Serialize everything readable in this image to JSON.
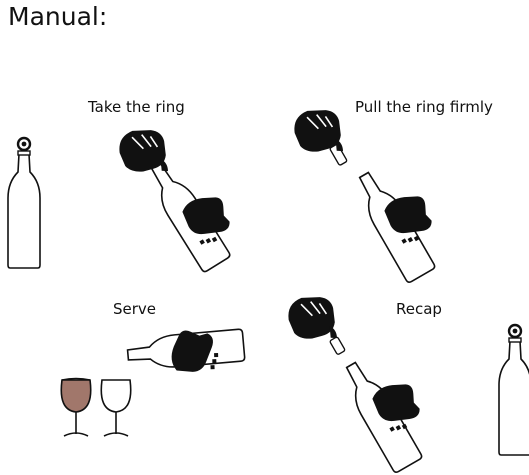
{
  "title": "Manual:",
  "steps": [
    {
      "label": "Take the ring"
    },
    {
      "label": "Pull the ring firmly"
    },
    {
      "label": "Serve"
    },
    {
      "label": "Recap"
    }
  ],
  "colors": {
    "ink": "#111111",
    "wine": "#a1776b",
    "background": "#ffffff"
  }
}
